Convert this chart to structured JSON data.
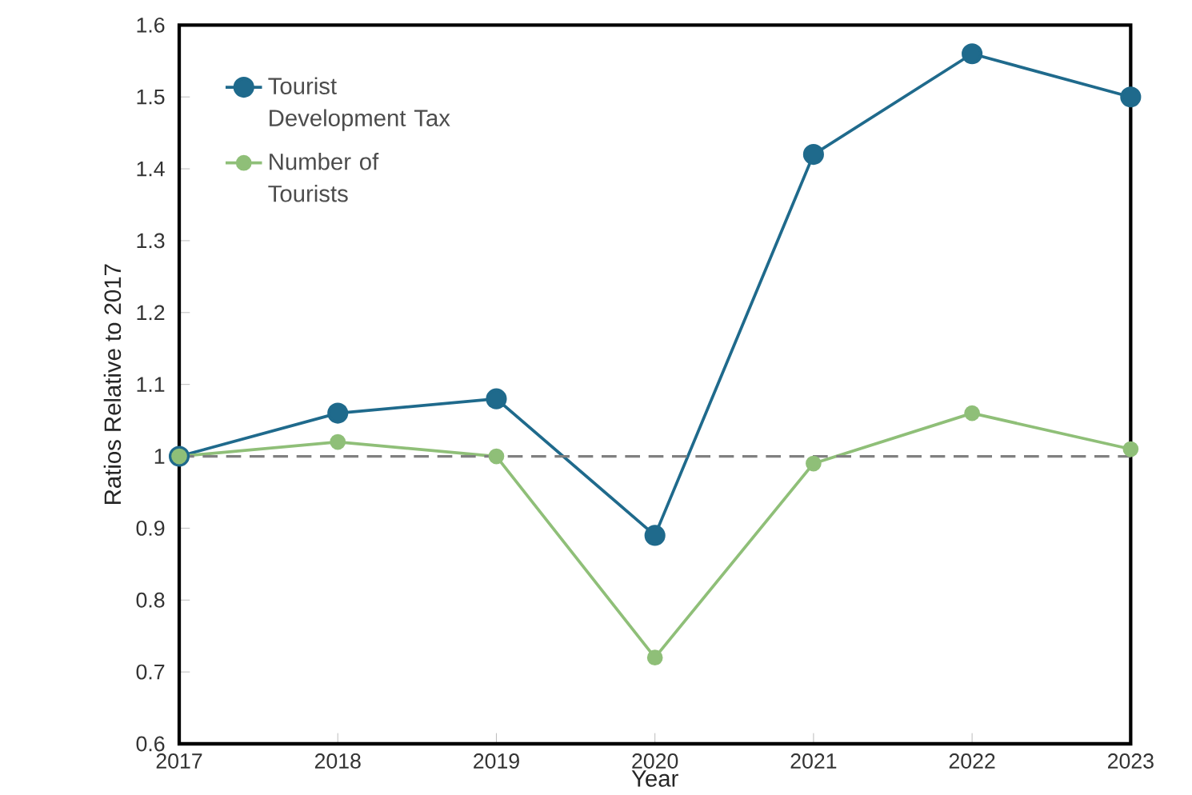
{
  "chart_data": {
    "type": "line",
    "xlabel": "Year",
    "ylabel": "Ratios Relative to 2017",
    "x": [
      2017,
      2018,
      2019,
      2020,
      2021,
      2022,
      2023
    ],
    "series": [
      {
        "name": "Tourist Development Tax",
        "color": "#1f6a8c",
        "values": [
          1.0,
          1.06,
          1.08,
          0.89,
          1.42,
          1.56,
          1.5
        ]
      },
      {
        "name": "Number of Tourists",
        "color": "#8fbf78",
        "values": [
          1.0,
          1.02,
          1.0,
          0.72,
          0.99,
          1.06,
          1.01
        ]
      }
    ],
    "xlim": [
      2017,
      2023
    ],
    "xticks": [
      2017,
      2018,
      2019,
      2020,
      2021,
      2022,
      2023
    ],
    "ylim": [
      0.6,
      1.6
    ],
    "yticks": [
      0.6,
      0.7,
      0.8,
      0.9,
      1,
      1.1,
      1.2,
      1.3,
      1.4,
      1.5,
      1.6
    ],
    "ref_lines": [
      {
        "axis": "y",
        "value": 1,
        "color": "#808080",
        "line_style": "dashed"
      }
    ],
    "legend": "top left",
    "marker": "circle",
    "line_style": "solid",
    "grid": false
  }
}
